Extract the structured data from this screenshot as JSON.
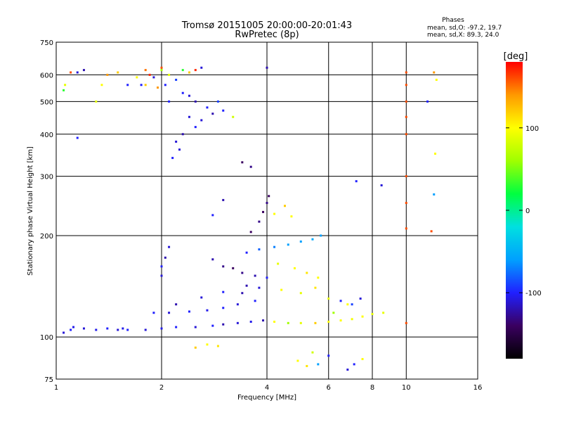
{
  "chart_data": {
    "type": "scatter",
    "title": "Tromsø 20151005 20:00:00-20:01:43",
    "subtitle": "RwPretec (8p)",
    "xlabel": "Frequency [MHz]",
    "ylabel": "Stationary phase Virtual Height [km]",
    "x_scale": "log",
    "y_scale": "log",
    "xlim": [
      1,
      16
    ],
    "ylim": [
      75,
      750
    ],
    "x_ticks": [
      1,
      2,
      4,
      6,
      8,
      10,
      16
    ],
    "x_tick_labels": [
      "1",
      "2",
      "4",
      "6",
      "8",
      "10",
      "16"
    ],
    "y_ticks": [
      75,
      100,
      200,
      300,
      400,
      500,
      600,
      750
    ],
    "y_tick_labels": [
      "75",
      "100",
      "200",
      "300",
      "400",
      "500",
      "600",
      "750"
    ],
    "grid": true,
    "info": {
      "heading": "Phases",
      "line1": "mean, sd,O: -97.2, 19.7",
      "line2": "mean, sd,X: 89.3, 24.0"
    },
    "colorbar": {
      "label": "[deg]",
      "range": [
        -180,
        180
      ],
      "ticks": [
        100,
        0,
        -100
      ],
      "tick_labels": [
        "100",
        "0",
        "-100"
      ],
      "stops": [
        "#000000",
        "#3a0060",
        "#2020ff",
        "#00a0ff",
        "#00e0e0",
        "#00ff40",
        "#a0ff00",
        "#ffff00",
        "#ff9900",
        "#ff0000"
      ]
    },
    "series": [
      {
        "points": [
          [
            1.05,
            103,
            -110
          ],
          [
            1.1,
            105,
            -100
          ],
          [
            1.12,
            107,
            -105
          ],
          [
            1.2,
            106,
            -110
          ],
          [
            1.3,
            105,
            -105
          ],
          [
            1.4,
            106,
            -100
          ],
          [
            1.5,
            105,
            -110
          ],
          [
            1.55,
            106,
            -105
          ],
          [
            1.6,
            105,
            -100
          ],
          [
            1.8,
            105,
            -110
          ],
          [
            2.0,
            106,
            -105
          ],
          [
            2.2,
            107,
            -100
          ],
          [
            2.5,
            107,
            -110
          ],
          [
            2.8,
            108,
            -100
          ],
          [
            3.0,
            109,
            -120
          ],
          [
            3.3,
            110,
            -110
          ],
          [
            3.6,
            111,
            -105
          ],
          [
            3.9,
            112,
            -120
          ],
          [
            4.2,
            111,
            100
          ],
          [
            4.6,
            110,
            60
          ],
          [
            5.0,
            110,
            90
          ],
          [
            5.5,
            110,
            120
          ],
          [
            6.0,
            111,
            100
          ],
          [
            6.5,
            112,
            100
          ],
          [
            7.0,
            113,
            95
          ],
          [
            7.5,
            115,
            100
          ],
          [
            8.0,
            117,
            90
          ],
          [
            8.6,
            118,
            90
          ],
          [
            1.9,
            118,
            -100
          ],
          [
            2.1,
            118,
            -110
          ],
          [
            2.4,
            119,
            -100
          ],
          [
            2.7,
            120,
            -105
          ],
          [
            3.0,
            122,
            -100
          ],
          [
            3.3,
            125,
            -110
          ],
          [
            3.7,
            128,
            -100
          ],
          [
            2.2,
            125,
            -120
          ],
          [
            2.6,
            131,
            -110
          ],
          [
            3.0,
            136,
            -100
          ],
          [
            3.5,
            142,
            -120
          ],
          [
            4.0,
            150,
            -100
          ],
          [
            2.0,
            152,
            -110
          ],
          [
            2.0,
            162,
            -100
          ],
          [
            2.05,
            172,
            -120
          ],
          [
            2.1,
            185,
            -110
          ],
          [
            2.8,
            170,
            -120
          ],
          [
            3.0,
            162,
            -130
          ],
          [
            3.2,
            160,
            -140
          ],
          [
            3.4,
            155,
            -130
          ],
          [
            3.7,
            152,
            -120
          ],
          [
            3.5,
            178,
            -100
          ],
          [
            3.8,
            182,
            -80
          ],
          [
            4.2,
            185,
            -70
          ],
          [
            4.6,
            188,
            -60
          ],
          [
            5.0,
            192,
            -60
          ],
          [
            5.4,
            195,
            -55
          ],
          [
            5.7,
            200,
            -60
          ],
          [
            3.6,
            205,
            -140
          ],
          [
            3.8,
            220,
            -130
          ],
          [
            3.9,
            235,
            -140
          ],
          [
            4.0,
            250,
            -130
          ],
          [
            4.05,
            262,
            -140
          ],
          [
            3.6,
            320,
            -130
          ],
          [
            3.4,
            330,
            -140
          ],
          [
            4.3,
            165,
            90
          ],
          [
            4.8,
            160,
            100
          ],
          [
            5.2,
            155,
            110
          ],
          [
            5.6,
            150,
            100
          ],
          [
            4.4,
            138,
            100
          ],
          [
            5.0,
            135,
            90
          ],
          [
            5.5,
            140,
            110
          ],
          [
            6.0,
            130,
            90
          ],
          [
            3.4,
            135,
            -120
          ],
          [
            3.8,
            140,
            -110
          ],
          [
            6.5,
            128,
            -100
          ],
          [
            7.0,
            125,
            -90
          ],
          [
            7.4,
            130,
            -110
          ],
          [
            6.2,
            118,
            60
          ],
          [
            6.8,
            125,
            100
          ],
          [
            2.8,
            230,
            -100
          ],
          [
            3.0,
            255,
            -120
          ],
          [
            4.2,
            232,
            100
          ],
          [
            4.5,
            245,
            120
          ],
          [
            4.7,
            228,
            100
          ],
          [
            4.9,
            85,
            100
          ],
          [
            5.2,
            82,
            110
          ],
          [
            5.4,
            90,
            80
          ],
          [
            5.6,
            83,
            -60
          ],
          [
            6.0,
            88,
            -100
          ],
          [
            6.8,
            80,
            -110
          ],
          [
            7.1,
            83,
            -100
          ],
          [
            7.5,
            86,
            100
          ],
          [
            2.5,
            93,
            120
          ],
          [
            2.7,
            95,
            100
          ],
          [
            2.9,
            94,
            110
          ],
          [
            7.2,
            290,
            -100
          ],
          [
            8.5,
            282,
            -110
          ],
          [
            12.0,
            265,
            -60
          ],
          [
            12.1,
            350,
            100
          ],
          [
            11.8,
            206,
            160
          ],
          [
            10.0,
            110,
            160
          ],
          [
            10.0,
            210,
            160
          ],
          [
            10.0,
            250,
            160
          ],
          [
            10.0,
            300,
            160
          ],
          [
            10.0,
            400,
            160
          ],
          [
            10.0,
            450,
            160
          ],
          [
            10.0,
            500,
            160
          ],
          [
            10.0,
            560,
            160
          ],
          [
            10.0,
            610,
            160
          ],
          [
            2.5,
            420,
            -100
          ],
          [
            2.6,
            440,
            -110
          ],
          [
            2.8,
            460,
            -120
          ],
          [
            3.0,
            470,
            -100
          ],
          [
            2.2,
            380,
            -110
          ],
          [
            2.3,
            400,
            -120
          ],
          [
            2.15,
            340,
            -100
          ],
          [
            2.25,
            360,
            -110
          ],
          [
            2.4,
            450,
            -110
          ],
          [
            2.7,
            480,
            -100
          ],
          [
            2.9,
            500,
            -90
          ],
          [
            2.1,
            500,
            -100
          ],
          [
            1.05,
            540,
            30
          ],
          [
            1.06,
            560,
            90
          ],
          [
            1.1,
            610,
            160
          ],
          [
            1.15,
            610,
            -110
          ],
          [
            1.2,
            620,
            -120
          ],
          [
            1.3,
            500,
            90
          ],
          [
            1.35,
            560,
            100
          ],
          [
            1.4,
            600,
            140
          ],
          [
            1.5,
            610,
            120
          ],
          [
            1.6,
            560,
            -100
          ],
          [
            1.7,
            590,
            100
          ],
          [
            1.75,
            560,
            -100
          ],
          [
            1.8,
            560,
            120
          ],
          [
            1.85,
            600,
            170
          ],
          [
            1.9,
            590,
            -110
          ],
          [
            1.95,
            550,
            140
          ],
          [
            2.0,
            620,
            60
          ],
          [
            2.05,
            560,
            -100
          ],
          [
            2.1,
            600,
            90
          ],
          [
            2.2,
            580,
            -90
          ],
          [
            2.3,
            620,
            30
          ],
          [
            2.4,
            610,
            120
          ],
          [
            2.5,
            620,
            170
          ],
          [
            2.6,
            630,
            -110
          ],
          [
            2.3,
            530,
            -100
          ],
          [
            2.4,
            520,
            -110
          ],
          [
            2.5,
            500,
            -120
          ],
          [
            1.15,
            390,
            -100
          ],
          [
            3.2,
            450,
            80
          ],
          [
            4.0,
            630,
            -120
          ],
          [
            12.0,
            610,
            140
          ],
          [
            12.2,
            580,
            100
          ],
          [
            11.5,
            500,
            -100
          ],
          [
            2.0,
            630,
            160
          ],
          [
            1.8,
            620,
            150
          ]
        ]
      }
    ]
  }
}
